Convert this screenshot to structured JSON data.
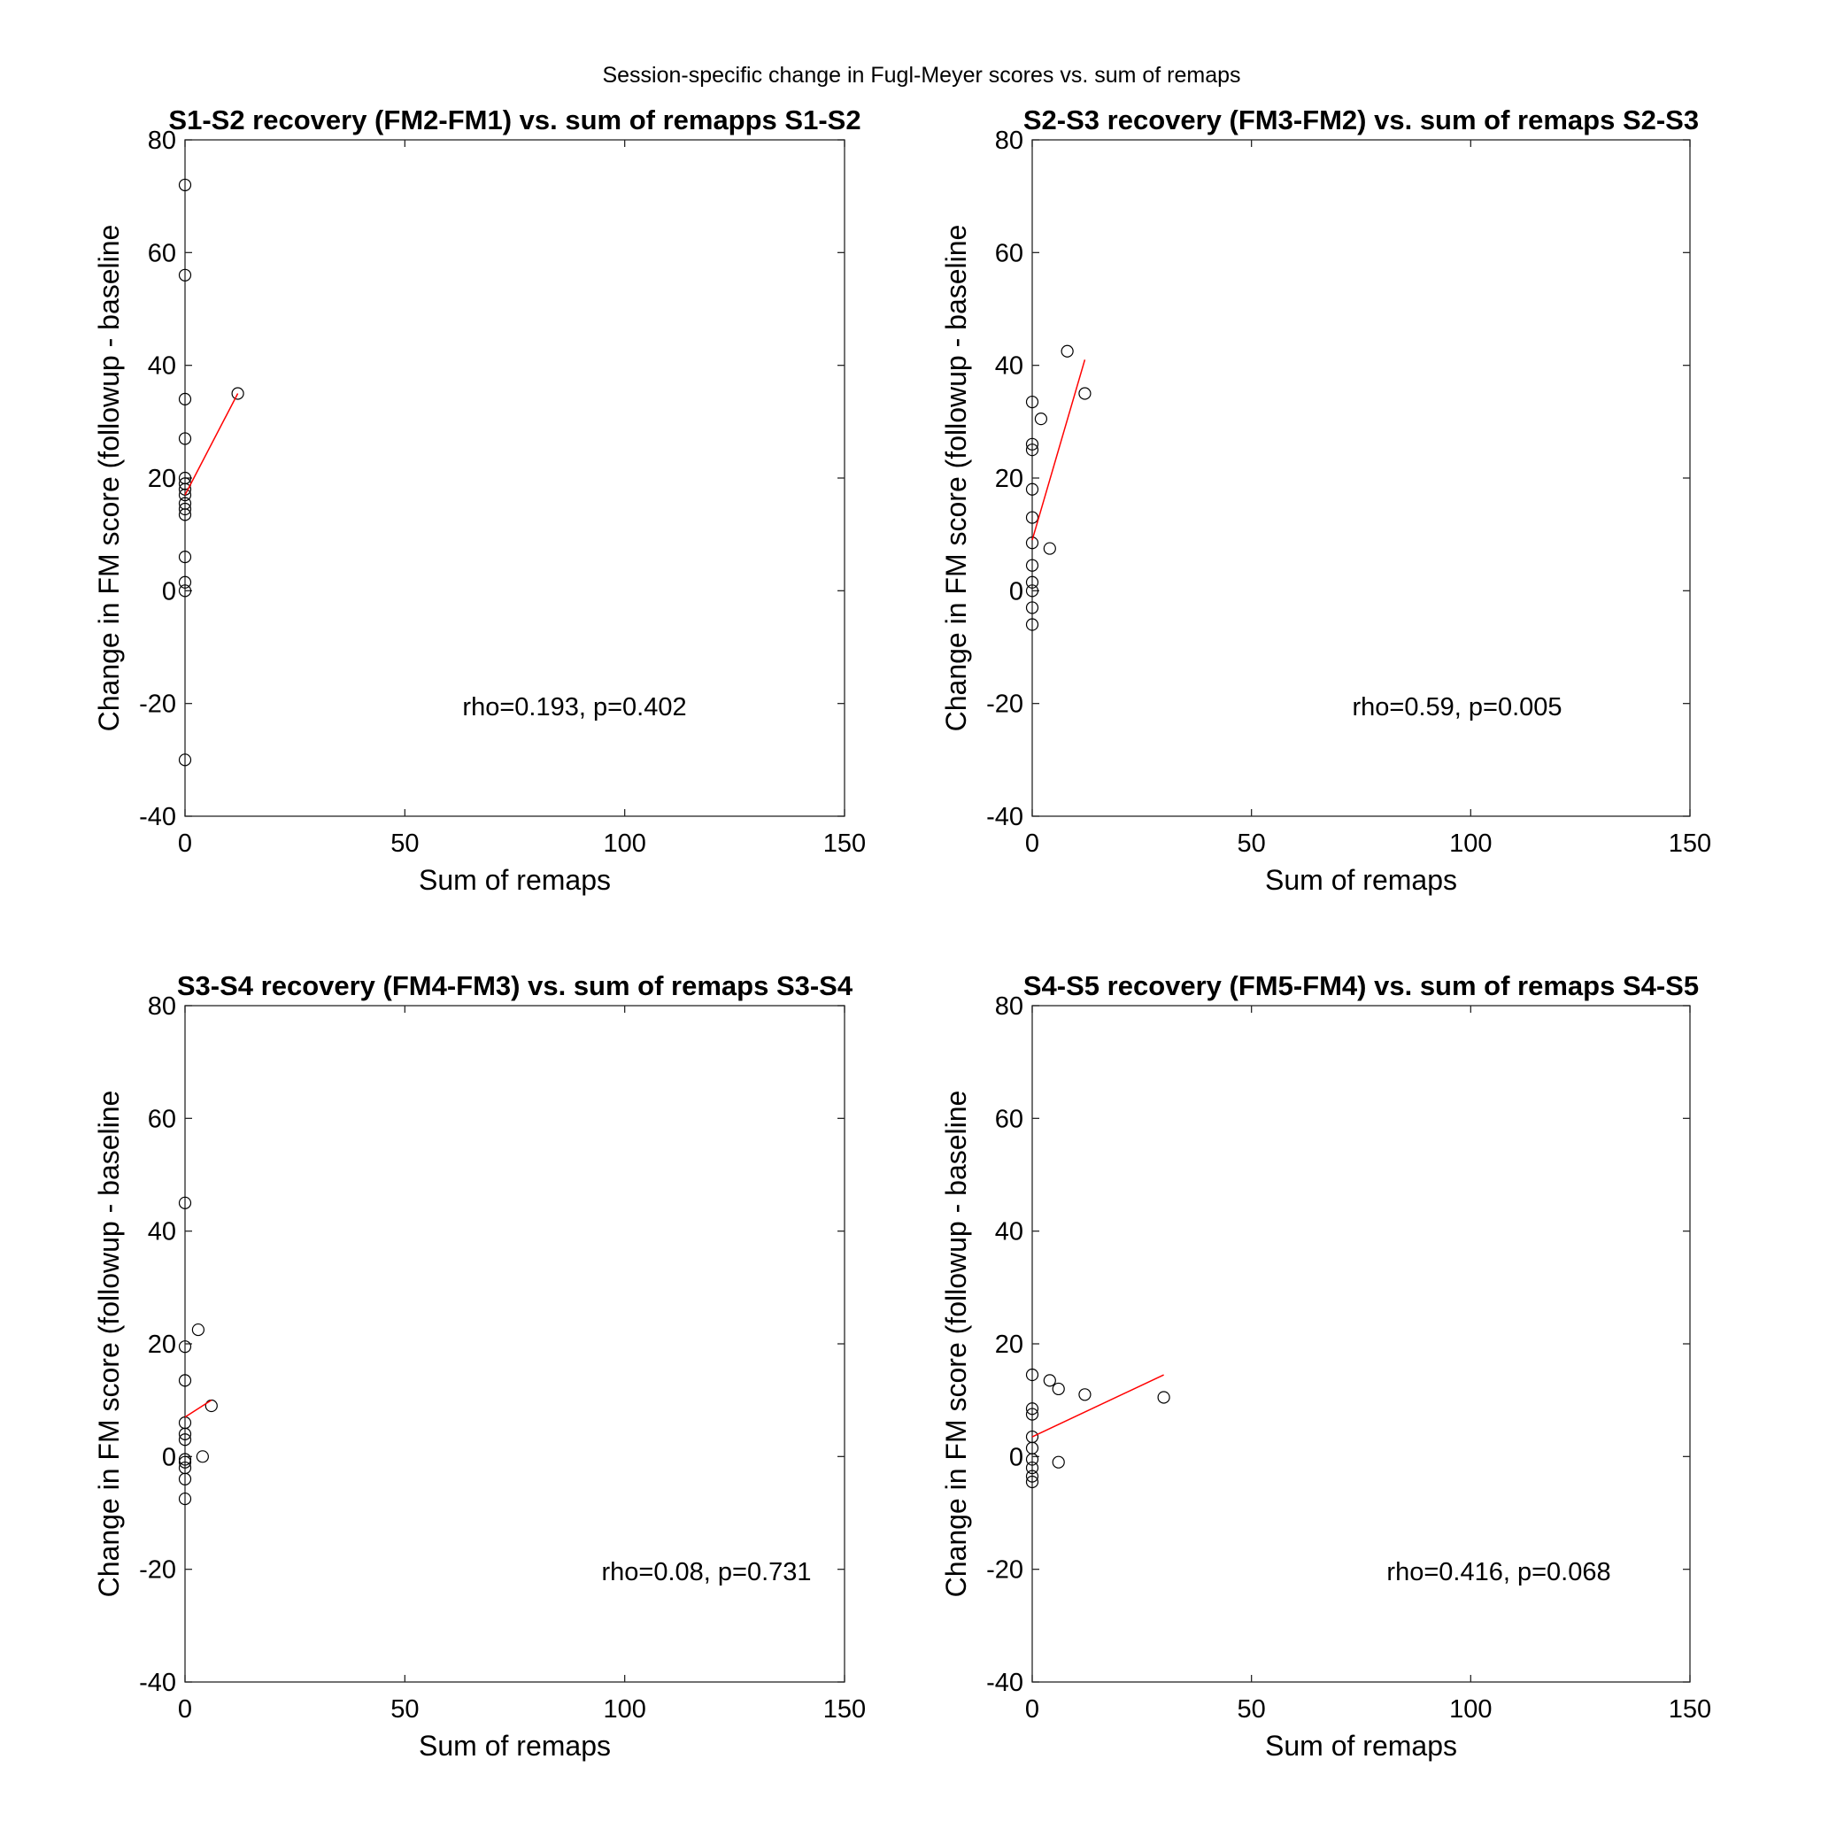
{
  "figure_title": "Session-specific change in Fugl-Meyer scores vs. sum of remaps",
  "chart_data": [
    {
      "type": "scatter",
      "title": "S1-S2 recovery (FM2-FM1) vs. sum of remapps S1-S2",
      "xlabel": "Sum of remaps",
      "ylabel": "Change in FM score (followup - baseline",
      "xlim": [
        0,
        150
      ],
      "ylim": [
        -40,
        80
      ],
      "xticks": [
        0,
        50,
        100,
        150
      ],
      "yticks": [
        -40,
        -20,
        0,
        20,
        40,
        60,
        80
      ],
      "points": [
        {
          "x": 0,
          "y": 72
        },
        {
          "x": 0,
          "y": 56
        },
        {
          "x": 0,
          "y": 34
        },
        {
          "x": 0,
          "y": 27
        },
        {
          "x": 0,
          "y": 20
        },
        {
          "x": 0,
          "y": 19
        },
        {
          "x": 0,
          "y": 18
        },
        {
          "x": 0,
          "y": 17
        },
        {
          "x": 0,
          "y": 15.5
        },
        {
          "x": 0,
          "y": 14.5
        },
        {
          "x": 0,
          "y": 13.5
        },
        {
          "x": 0,
          "y": 6
        },
        {
          "x": 0,
          "y": 1.5
        },
        {
          "x": 0,
          "y": 0
        },
        {
          "x": 0,
          "y": -30
        },
        {
          "x": 12,
          "y": 35
        }
      ],
      "fit_line": {
        "x": [
          0,
          12
        ],
        "y": [
          17,
          35
        ],
        "color": "#ff0000"
      },
      "annotation": "rho=0.193, p=0.402"
    },
    {
      "type": "scatter",
      "title": "S2-S3 recovery (FM3-FM2) vs. sum of remaps S2-S3",
      "xlabel": "Sum of remaps",
      "ylabel": "Change in FM score (followup - baseline",
      "xlim": [
        0,
        150
      ],
      "ylim": [
        -40,
        80
      ],
      "xticks": [
        0,
        50,
        100,
        150
      ],
      "yticks": [
        -40,
        -20,
        0,
        20,
        40,
        60,
        80
      ],
      "points": [
        {
          "x": 8,
          "y": 42.5
        },
        {
          "x": 12,
          "y": 35
        },
        {
          "x": 0,
          "y": 33.5
        },
        {
          "x": 2,
          "y": 30.5
        },
        {
          "x": 0,
          "y": 26
        },
        {
          "x": 0,
          "y": 25
        },
        {
          "x": 0,
          "y": 18
        },
        {
          "x": 0,
          "y": 13
        },
        {
          "x": 0,
          "y": 8.5
        },
        {
          "x": 4,
          "y": 7.5
        },
        {
          "x": 0,
          "y": 4.5
        },
        {
          "x": 0,
          "y": 1.5
        },
        {
          "x": 0,
          "y": 0
        },
        {
          "x": 0,
          "y": -3
        },
        {
          "x": 0,
          "y": -6
        }
      ],
      "fit_line": {
        "x": [
          0,
          12
        ],
        "y": [
          9,
          41
        ],
        "color": "#ff0000"
      },
      "annotation": "rho=0.59, p=0.005"
    },
    {
      "type": "scatter",
      "title": "S3-S4 recovery (FM4-FM3) vs. sum of remaps S3-S4",
      "xlabel": "Sum of remaps",
      "ylabel": "Change in FM score (followup - baseline",
      "xlim": [
        0,
        150
      ],
      "ylim": [
        -40,
        80
      ],
      "xticks": [
        0,
        50,
        100,
        150
      ],
      "yticks": [
        -40,
        -20,
        0,
        20,
        40,
        60,
        80
      ],
      "points": [
        {
          "x": 0,
          "y": 45
        },
        {
          "x": 3,
          "y": 22.5
        },
        {
          "x": 0,
          "y": 19.5
        },
        {
          "x": 0,
          "y": 13.5
        },
        {
          "x": 6,
          "y": 9
        },
        {
          "x": 0,
          "y": 6
        },
        {
          "x": 0,
          "y": 4
        },
        {
          "x": 0,
          "y": 3
        },
        {
          "x": 4,
          "y": 0
        },
        {
          "x": 0,
          "y": -0.5
        },
        {
          "x": 0,
          "y": -1
        },
        {
          "x": 0,
          "y": -2
        },
        {
          "x": 0,
          "y": -4
        },
        {
          "x": 0,
          "y": -7.5
        }
      ],
      "fit_line": {
        "x": [
          0,
          6
        ],
        "y": [
          7,
          10
        ],
        "color": "#ff0000"
      },
      "annotation": "rho=0.08, p=0.731"
    },
    {
      "type": "scatter",
      "title": "S4-S5 recovery (FM5-FM4) vs. sum of remaps S4-S5",
      "xlabel": "Sum of remaps",
      "ylabel": "Change in FM score (followup - baseline",
      "xlim": [
        0,
        150
      ],
      "ylim": [
        -40,
        80
      ],
      "xticks": [
        0,
        50,
        100,
        150
      ],
      "yticks": [
        -40,
        -20,
        0,
        20,
        40,
        60,
        80
      ],
      "points": [
        {
          "x": 0,
          "y": 14.5
        },
        {
          "x": 4,
          "y": 13.5
        },
        {
          "x": 6,
          "y": 12
        },
        {
          "x": 12,
          "y": 11
        },
        {
          "x": 30,
          "y": 10.5
        },
        {
          "x": 0,
          "y": 8.5
        },
        {
          "x": 0,
          "y": 7.5
        },
        {
          "x": 0,
          "y": 3.5
        },
        {
          "x": 0,
          "y": 1.5
        },
        {
          "x": 0,
          "y": -0.5
        },
        {
          "x": 6,
          "y": -1
        },
        {
          "x": 0,
          "y": -2
        },
        {
          "x": 0,
          "y": -3.5
        },
        {
          "x": 0,
          "y": -4.5
        }
      ],
      "fit_line": {
        "x": [
          0,
          30
        ],
        "y": [
          3.5,
          14.5
        ],
        "color": "#ff0000"
      },
      "annotation": "rho=0.416, p=0.068"
    }
  ]
}
